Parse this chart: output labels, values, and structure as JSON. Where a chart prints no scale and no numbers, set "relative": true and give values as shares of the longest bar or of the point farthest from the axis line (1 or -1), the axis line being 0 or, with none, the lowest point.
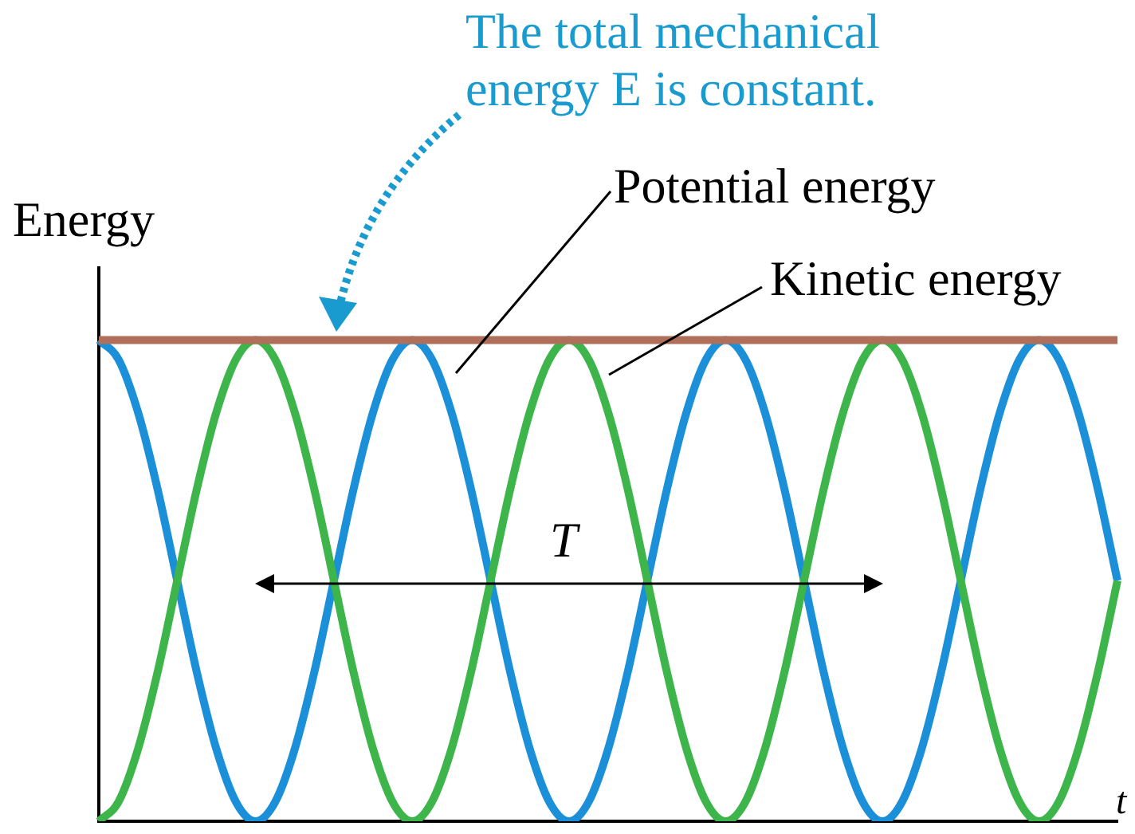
{
  "chart_data": {
    "type": "line",
    "relative": true,
    "ylabel": "Energy",
    "xlabel": "t",
    "marker": "none",
    "line_style": "solid",
    "annotations": [
      "The total mechanical energy E is constant.",
      "T"
    ],
    "categories": [
      null,
      null,
      null,
      null,
      null,
      null,
      null,
      null,
      null,
      null,
      null,
      null,
      null,
      null,
      null,
      null,
      null,
      null,
      null,
      null,
      null,
      null,
      null,
      null,
      null,
      null,
      null,
      null,
      null,
      null,
      null,
      null,
      null,
      null,
      null,
      null,
      null,
      null,
      null,
      null,
      null,
      null,
      null,
      null,
      null,
      null,
      null,
      null,
      null,
      null,
      null,
      null,
      null
    ],
    "series": [
      {
        "name": "Potential energy",
        "color": "#1b8fd8",
        "values": [
          1,
          0.96,
          0.85,
          0.69,
          0.5,
          0.31,
          0.15,
          0.04,
          0,
          0.04,
          0.15,
          0.31,
          0.5,
          0.69,
          0.85,
          0.96,
          1,
          0.96,
          0.85,
          0.69,
          0.5,
          0.31,
          0.15,
          0.04,
          0,
          0.04,
          0.15,
          0.31,
          0.5,
          0.69,
          0.85,
          0.96,
          1,
          0.96,
          0.85,
          0.69,
          0.5,
          0.31,
          0.15,
          0.04,
          0,
          0.04,
          0.15,
          0.31,
          0.5,
          0.69,
          0.85,
          0.96,
          1,
          0.96,
          0.85,
          0.69,
          0.5
        ]
      },
      {
        "name": "Kinetic energy",
        "color": "#3db54a",
        "values": [
          0,
          0.04,
          0.15,
          0.31,
          0.5,
          0.69,
          0.85,
          0.96,
          1,
          0.96,
          0.85,
          0.69,
          0.5,
          0.31,
          0.15,
          0.04,
          0,
          0.04,
          0.15,
          0.31,
          0.5,
          0.69,
          0.85,
          0.96,
          1,
          0.96,
          0.85,
          0.69,
          0.5,
          0.31,
          0.15,
          0.04,
          0,
          0.04,
          0.15,
          0.31,
          0.5,
          0.69,
          0.85,
          0.96,
          1,
          0.96,
          0.85,
          0.69,
          0.5,
          0.31,
          0.15,
          0.04,
          0,
          0.04,
          0.15,
          0.31,
          0.5
        ]
      },
      {
        "color": "#b06f5a",
        "values": [
          1,
          1,
          1,
          1,
          1,
          1,
          1,
          1,
          1,
          1,
          1,
          1,
          1,
          1,
          1,
          1,
          1,
          1,
          1,
          1,
          1,
          1,
          1,
          1,
          1,
          1,
          1,
          1,
          1,
          1,
          1,
          1,
          1,
          1,
          1,
          1,
          1,
          1,
          1,
          1,
          1,
          1,
          1,
          1,
          1,
          1,
          1,
          1,
          1,
          1,
          1,
          1,
          1
        ]
      }
    ]
  }
}
